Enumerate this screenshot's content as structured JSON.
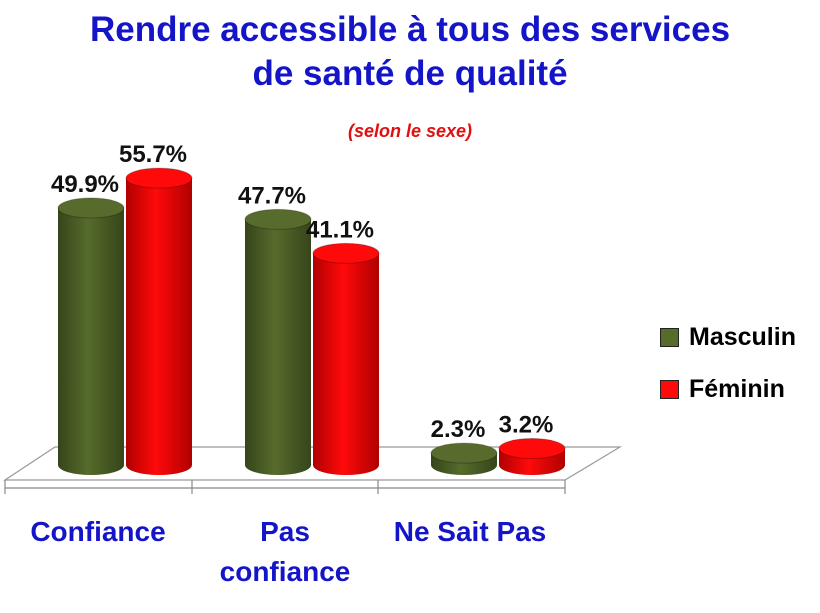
{
  "title_line1": "Rendre accessible à tous des services",
  "title_line2": "de santé de qualité",
  "subtitle": "(selon le sexe)",
  "colors": {
    "masculin": "#566b2c",
    "masculin_dark": "#36451a",
    "feminin": "#ff0a0a",
    "feminin_dark": "#b00000",
    "category_labels": "#1414c8"
  },
  "chart_data": {
    "type": "bar",
    "title": "Rendre accessible à tous des services de santé de qualité",
    "subtitle": "(selon le sexe)",
    "categories": [
      [
        "Confiance"
      ],
      [
        "Pas",
        "confiance"
      ],
      [
        "Ne Sait Pas"
      ]
    ],
    "series": [
      {
        "name": "Masculin",
        "values": [
          49.9,
          47.7,
          2.3
        ],
        "labels": [
          "49.9%",
          "47.7%",
          "2.3%"
        ]
      },
      {
        "name": "Féminin",
        "values": [
          55.7,
          41.1,
          3.2
        ],
        "labels": [
          "55.7%",
          "41.1%",
          "3.2%"
        ]
      }
    ],
    "xlabel": "",
    "ylabel": "",
    "grid": false,
    "legend_position": "right",
    "style": "3d-cylinder"
  }
}
